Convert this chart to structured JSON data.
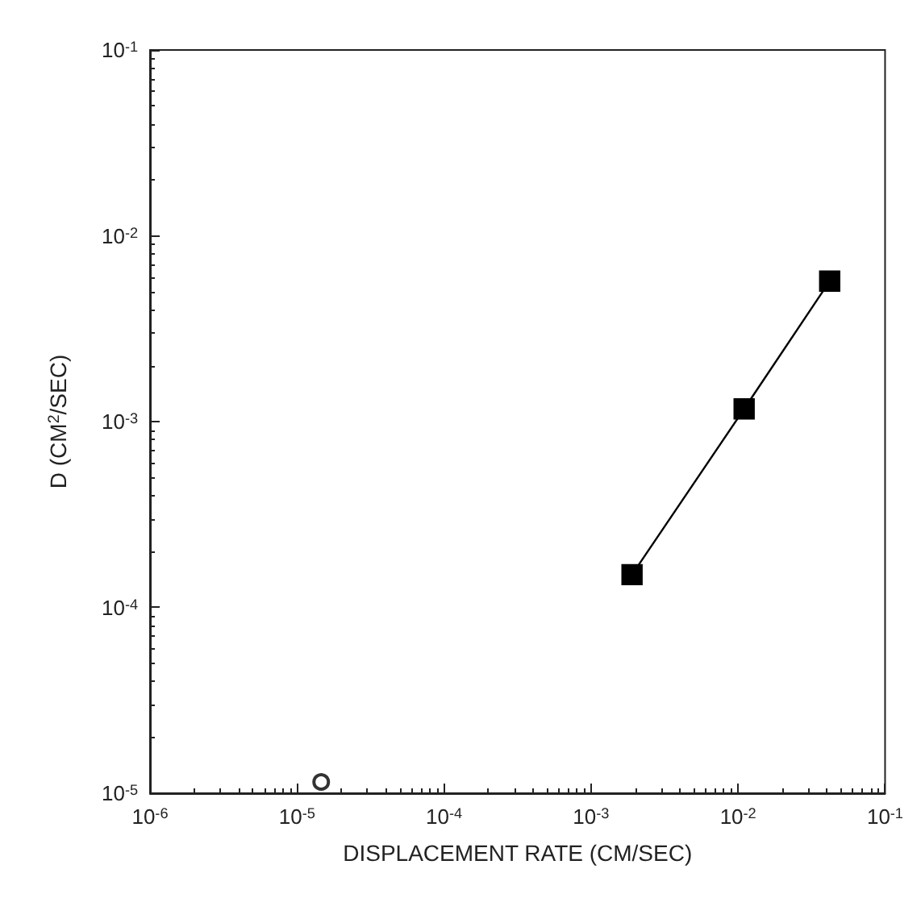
{
  "chart_data": {
    "type": "line",
    "xlabel": "DISPLACEMENT RATE (CM/SEC)",
    "ylabel": "D (CM$^{2}$/SEC)",
    "log": "xy",
    "grid": false,
    "xlim": [
      1e-06,
      0.1
    ],
    "ylim": [
      1e-05,
      0.1
    ],
    "xticks": [
      {
        "value": 1e-06,
        "label": "10$^{-6}$"
      },
      {
        "value": 1e-05,
        "label": "10$^{-5}$"
      },
      {
        "value": 0.0001,
        "label": "10$^{-4}$"
      },
      {
        "value": 0.001,
        "label": "10$^{-3}$"
      },
      {
        "value": 0.01,
        "label": "10$^{-2}$"
      },
      {
        "value": 0.1,
        "label": "10$^{-1}$"
      }
    ],
    "yticks": [
      {
        "value": 1e-05,
        "label": "10$^{-5}$"
      },
      {
        "value": 0.0001,
        "label": "10$^{-4}$"
      },
      {
        "value": 0.001,
        "label": "10$^{-3}$"
      },
      {
        "value": 0.01,
        "label": "10$^{-2}$"
      },
      {
        "value": 0.1,
        "label": "10$^{-1}$"
      }
    ],
    "series": [
      {
        "color": "#000000",
        "marker": "square",
        "line_style": "solid",
        "x": [
          0.0019,
          0.011,
          0.042
        ],
        "values": [
          0.00015,
          0.00117,
          0.0057
        ]
      },
      {
        "type": "scatter",
        "color": "#000000",
        "marker": "circle",
        "x": [
          1.46e-05
        ],
        "values": [
          1.15e-05
        ]
      }
    ]
  }
}
